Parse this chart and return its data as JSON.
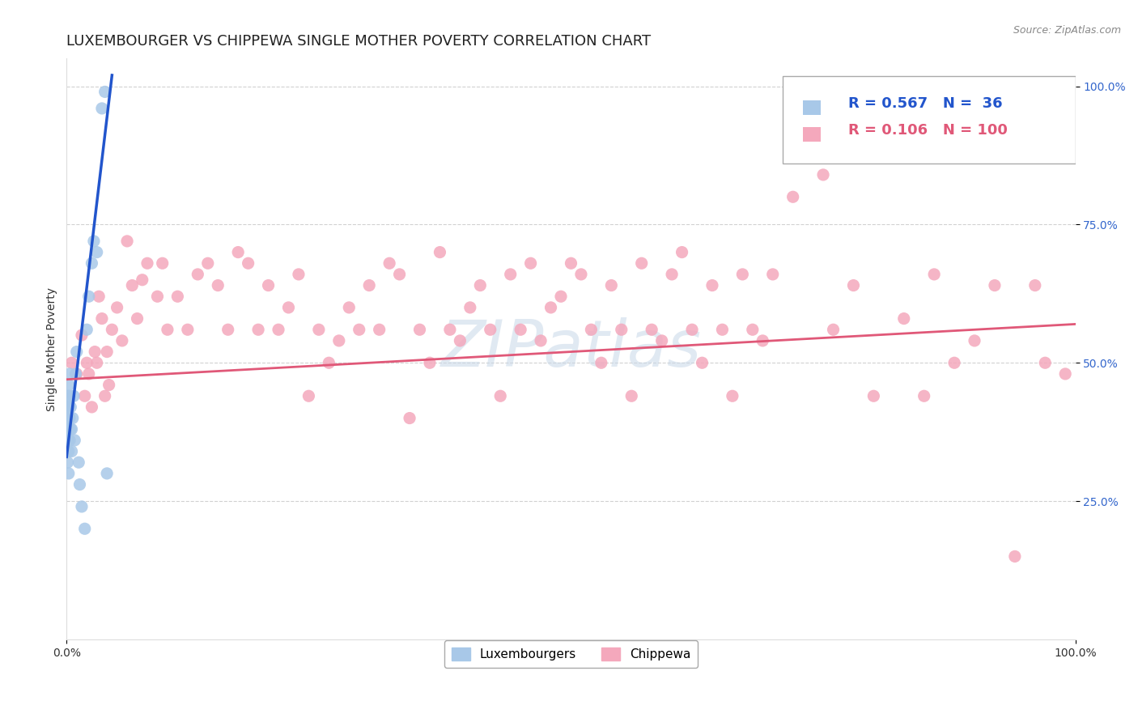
{
  "title": "LUXEMBOURGER VS CHIPPEWA SINGLE MOTHER POVERTY CORRELATION CHART",
  "source": "Source: ZipAtlas.com",
  "ylabel": "Single Mother Poverty",
  "xlim": [
    0.0,
    1.0
  ],
  "ylim": [
    0.0,
    1.05
  ],
  "xticks": [
    0.0,
    1.0
  ],
  "xtick_labels": [
    "0.0%",
    "100.0%"
  ],
  "yticks": [
    0.25,
    0.5,
    0.75,
    1.0
  ],
  "ytick_labels": [
    "25.0%",
    "50.0%",
    "75.0%",
    "100.0%"
  ],
  "luxembourger_color": "#A8C8E8",
  "chippewa_color": "#F4A8BC",
  "luxembourger_line_color": "#2255CC",
  "chippewa_line_color": "#E05878",
  "R_lux": 0.567,
  "N_lux": 36,
  "R_chip": 0.106,
  "N_chip": 100,
  "watermark": "ZIPatlas",
  "watermark_color": "#C8D8E8",
  "lux_legend_color": "#2255CC",
  "chip_legend_color": "#E05878",
  "lux_points": [
    [
      0.001,
      0.32
    ],
    [
      0.001,
      0.36
    ],
    [
      0.001,
      0.38
    ],
    [
      0.001,
      0.4
    ],
    [
      0.001,
      0.42
    ],
    [
      0.001,
      0.44
    ],
    [
      0.002,
      0.3
    ],
    [
      0.002,
      0.34
    ],
    [
      0.002,
      0.38
    ],
    [
      0.002,
      0.42
    ],
    [
      0.002,
      0.46
    ],
    [
      0.003,
      0.36
    ],
    [
      0.003,
      0.4
    ],
    [
      0.003,
      0.44
    ],
    [
      0.003,
      0.48
    ],
    [
      0.004,
      0.38
    ],
    [
      0.004,
      0.42
    ],
    [
      0.005,
      0.34
    ],
    [
      0.005,
      0.38
    ],
    [
      0.006,
      0.4
    ],
    [
      0.007,
      0.44
    ],
    [
      0.008,
      0.36
    ],
    [
      0.009,
      0.48
    ],
    [
      0.01,
      0.52
    ],
    [
      0.012,
      0.32
    ],
    [
      0.013,
      0.28
    ],
    [
      0.015,
      0.24
    ],
    [
      0.018,
      0.2
    ],
    [
      0.02,
      0.56
    ],
    [
      0.022,
      0.62
    ],
    [
      0.025,
      0.68
    ],
    [
      0.027,
      0.72
    ],
    [
      0.03,
      0.7
    ],
    [
      0.035,
      0.96
    ],
    [
      0.038,
      0.99
    ],
    [
      0.04,
      0.3
    ]
  ],
  "chip_points": [
    [
      0.005,
      0.5
    ],
    [
      0.01,
      0.48
    ],
    [
      0.015,
      0.55
    ],
    [
      0.018,
      0.44
    ],
    [
      0.02,
      0.5
    ],
    [
      0.022,
      0.48
    ],
    [
      0.025,
      0.42
    ],
    [
      0.028,
      0.52
    ],
    [
      0.03,
      0.5
    ],
    [
      0.032,
      0.62
    ],
    [
      0.035,
      0.58
    ],
    [
      0.038,
      0.44
    ],
    [
      0.04,
      0.52
    ],
    [
      0.042,
      0.46
    ],
    [
      0.045,
      0.56
    ],
    [
      0.05,
      0.6
    ],
    [
      0.055,
      0.54
    ],
    [
      0.06,
      0.72
    ],
    [
      0.065,
      0.64
    ],
    [
      0.07,
      0.58
    ],
    [
      0.075,
      0.65
    ],
    [
      0.08,
      0.68
    ],
    [
      0.09,
      0.62
    ],
    [
      0.095,
      0.68
    ],
    [
      0.1,
      0.56
    ],
    [
      0.11,
      0.62
    ],
    [
      0.12,
      0.56
    ],
    [
      0.13,
      0.66
    ],
    [
      0.14,
      0.68
    ],
    [
      0.15,
      0.64
    ],
    [
      0.16,
      0.56
    ],
    [
      0.17,
      0.7
    ],
    [
      0.18,
      0.68
    ],
    [
      0.19,
      0.56
    ],
    [
      0.2,
      0.64
    ],
    [
      0.21,
      0.56
    ],
    [
      0.22,
      0.6
    ],
    [
      0.23,
      0.66
    ],
    [
      0.24,
      0.44
    ],
    [
      0.25,
      0.56
    ],
    [
      0.26,
      0.5
    ],
    [
      0.27,
      0.54
    ],
    [
      0.28,
      0.6
    ],
    [
      0.29,
      0.56
    ],
    [
      0.3,
      0.64
    ],
    [
      0.31,
      0.56
    ],
    [
      0.32,
      0.68
    ],
    [
      0.33,
      0.66
    ],
    [
      0.34,
      0.4
    ],
    [
      0.35,
      0.56
    ],
    [
      0.36,
      0.5
    ],
    [
      0.37,
      0.7
    ],
    [
      0.38,
      0.56
    ],
    [
      0.39,
      0.54
    ],
    [
      0.4,
      0.6
    ],
    [
      0.41,
      0.64
    ],
    [
      0.42,
      0.56
    ],
    [
      0.43,
      0.44
    ],
    [
      0.44,
      0.66
    ],
    [
      0.45,
      0.56
    ],
    [
      0.46,
      0.68
    ],
    [
      0.47,
      0.54
    ],
    [
      0.48,
      0.6
    ],
    [
      0.49,
      0.62
    ],
    [
      0.5,
      0.68
    ],
    [
      0.51,
      0.66
    ],
    [
      0.52,
      0.56
    ],
    [
      0.53,
      0.5
    ],
    [
      0.54,
      0.64
    ],
    [
      0.55,
      0.56
    ],
    [
      0.56,
      0.44
    ],
    [
      0.57,
      0.68
    ],
    [
      0.58,
      0.56
    ],
    [
      0.59,
      0.54
    ],
    [
      0.6,
      0.66
    ],
    [
      0.61,
      0.7
    ],
    [
      0.62,
      0.56
    ],
    [
      0.63,
      0.5
    ],
    [
      0.64,
      0.64
    ],
    [
      0.65,
      0.56
    ],
    [
      0.66,
      0.44
    ],
    [
      0.67,
      0.66
    ],
    [
      0.68,
      0.56
    ],
    [
      0.69,
      0.54
    ],
    [
      0.7,
      0.66
    ],
    [
      0.72,
      0.8
    ],
    [
      0.75,
      0.84
    ],
    [
      0.76,
      0.56
    ],
    [
      0.78,
      0.64
    ],
    [
      0.8,
      0.44
    ],
    [
      0.83,
      0.58
    ],
    [
      0.85,
      0.44
    ],
    [
      0.86,
      0.66
    ],
    [
      0.88,
      0.5
    ],
    [
      0.9,
      0.54
    ],
    [
      0.92,
      0.64
    ],
    [
      0.94,
      0.15
    ],
    [
      0.96,
      0.64
    ],
    [
      0.97,
      0.5
    ],
    [
      0.99,
      0.48
    ]
  ],
  "background_color": "#FFFFFF",
  "grid_color": "#CCCCCC",
  "title_fontsize": 13,
  "axis_label_fontsize": 10,
  "tick_fontsize": 10,
  "legend_fontsize": 13
}
